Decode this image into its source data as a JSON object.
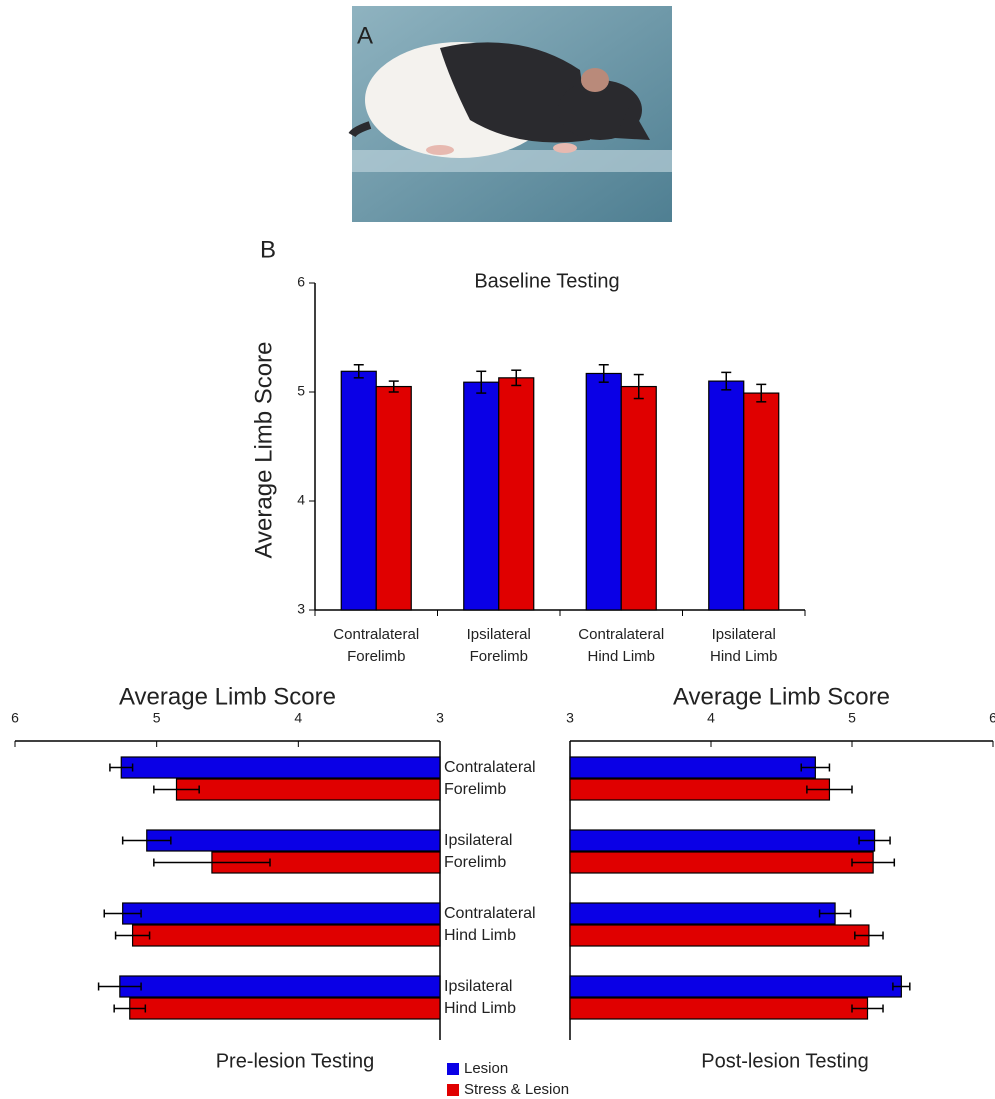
{
  "panel_labels": [
    "A",
    "B"
  ],
  "chart_data": [
    {
      "type": "bar",
      "title": "Baseline Testing",
      "y_label": "Average Limb Score",
      "categories": [
        "Contralateral\nForelimb",
        "Ipsilateral\nForelimb",
        "Contralateral\nHind Limb",
        "Ipsilateral\nHind Limb"
      ],
      "series": [
        {
          "color": "#0a00e6",
          "values": [
            5.19,
            5.09,
            5.17,
            5.1
          ],
          "errors": [
            0.06,
            0.1,
            0.08,
            0.08
          ]
        },
        {
          "color": "#e00000",
          "values": [
            5.05,
            5.13,
            5.05,
            4.99
          ],
          "errors": [
            0.05,
            0.07,
            0.11,
            0.08
          ]
        }
      ],
      "ylim": [
        3,
        6
      ],
      "yticks": [
        3,
        4,
        5,
        6
      ]
    },
    {
      "type": "bar",
      "horizontal": true,
      "title": "Pre-lesion Testing",
      "x_label": "Average Limb Score",
      "categories": [
        "Contralateral\nForelimb",
        "Ipsilateral\nForelimb",
        "Contralateral\nHind Limb",
        "Ipsilateral\nHind Limb"
      ],
      "series": [
        {
          "name": "Lesion",
          "color": "#0a00e6",
          "values": [
            5.25,
            5.07,
            5.24,
            5.26
          ],
          "errors": [
            0.08,
            0.17,
            0.13,
            0.15
          ]
        },
        {
          "name": "Stress & Lesion",
          "color": "#e00000",
          "values": [
            4.86,
            4.61,
            5.17,
            5.19
          ],
          "errors": [
            0.16,
            0.41,
            0.12,
            0.11
          ]
        }
      ],
      "xlim": [
        6,
        3
      ],
      "xticks": [
        6,
        5,
        4,
        3
      ]
    },
    {
      "type": "bar",
      "horizontal": true,
      "title": "Post-lesion Testing",
      "x_label": "Average Limb Score",
      "series": [
        {
          "color": "#0a00e6",
          "values": [
            4.74,
            5.16,
            4.88,
            5.35
          ],
          "errors": [
            0.1,
            0.11,
            0.11,
            0.06
          ]
        },
        {
          "color": "#e00000",
          "values": [
            4.84,
            5.15,
            5.12,
            5.11
          ],
          "errors": [
            0.16,
            0.15,
            0.1,
            0.11
          ]
        }
      ],
      "xlim": [
        3,
        6
      ],
      "xticks": [
        3,
        4,
        5,
        6
      ]
    }
  ]
}
